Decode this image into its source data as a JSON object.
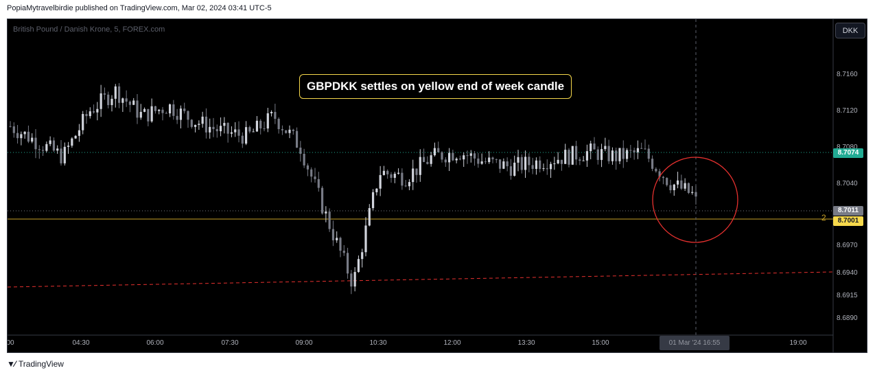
{
  "header": {
    "published": "PopiaMytravelbirdie published on TradingView.com, Mar 02, 2024 03:41 UTC-5"
  },
  "chart": {
    "symbol": "British Pound / Danish Krone, 5, FOREX.com",
    "currency_button": "DKK",
    "annotation": "GBPDKK settles on yellow end of week candle",
    "price_ticks": [
      "8.7160",
      "8.7120",
      "8.7080",
      "8.7040",
      "8.6970",
      "8.6940",
      "8.6915",
      "8.6890"
    ],
    "time_ticks": [
      "00",
      "04:30",
      "06:00",
      "07:30",
      "09:00",
      "10:30",
      "12:00",
      "13:30",
      "15:00",
      "19:00"
    ],
    "badges": {
      "high": {
        "value": "8.7074",
        "color": "#22ab94"
      },
      "last": {
        "value": "8.7011",
        "color": "#787b86"
      },
      "support": {
        "value": "8.7001",
        "color": "#f7d94c"
      }
    },
    "support_line_label": "2",
    "crosshair_time": "01 Mar '24  16:55",
    "colors": {
      "bull": "#d1d4dc",
      "bear": "#787b86",
      "support": "#c9a227",
      "trend": "#e8312f",
      "circle": "#e8312f"
    }
  },
  "footer": {
    "brand": "TradingView"
  },
  "chart_data": {
    "type": "candlestick",
    "title": "British Pound / Danish Krone, 5, FOREX.com",
    "y_range": [
      8.6875,
      8.7185
    ],
    "support_level": 8.7001,
    "high_level": 8.7074,
    "last_price": 8.7011,
    "series": [
      {
        "time": "04:00",
        "close": 8.708
      },
      {
        "time": "04:30",
        "close": 8.7065
      },
      {
        "time": "05:00",
        "close": 8.705
      },
      {
        "time": "05:30",
        "close": 8.7095
      },
      {
        "time": "06:00",
        "close": 8.7115
      },
      {
        "time": "06:30",
        "close": 8.709
      },
      {
        "time": "07:00",
        "close": 8.71
      },
      {
        "time": "07:30",
        "close": 8.7085
      },
      {
        "time": "08:00",
        "close": 8.7075
      },
      {
        "time": "08:30",
        "close": 8.707
      },
      {
        "time": "09:00",
        "close": 8.709
      },
      {
        "time": "09:30",
        "close": 8.706
      },
      {
        "time": "10:00",
        "close": 8.699
      },
      {
        "time": "10:30",
        "close": 8.6925
      },
      {
        "time": "11:00",
        "close": 8.7035
      },
      {
        "time": "11:30",
        "close": 8.703
      },
      {
        "time": "12:00",
        "close": 8.705
      },
      {
        "time": "12:30",
        "close": 8.7055
      },
      {
        "time": "13:00",
        "close": 8.7045
      },
      {
        "time": "13:30",
        "close": 8.704
      },
      {
        "time": "14:00",
        "close": 8.7045
      },
      {
        "time": "14:30",
        "close": 8.705
      },
      {
        "time": "15:00",
        "close": 8.7055
      },
      {
        "time": "15:30",
        "close": 8.705
      },
      {
        "time": "16:00",
        "close": 8.7055
      },
      {
        "time": "16:30",
        "close": 8.7025
      },
      {
        "time": "16:55",
        "close": 8.7011
      }
    ]
  }
}
